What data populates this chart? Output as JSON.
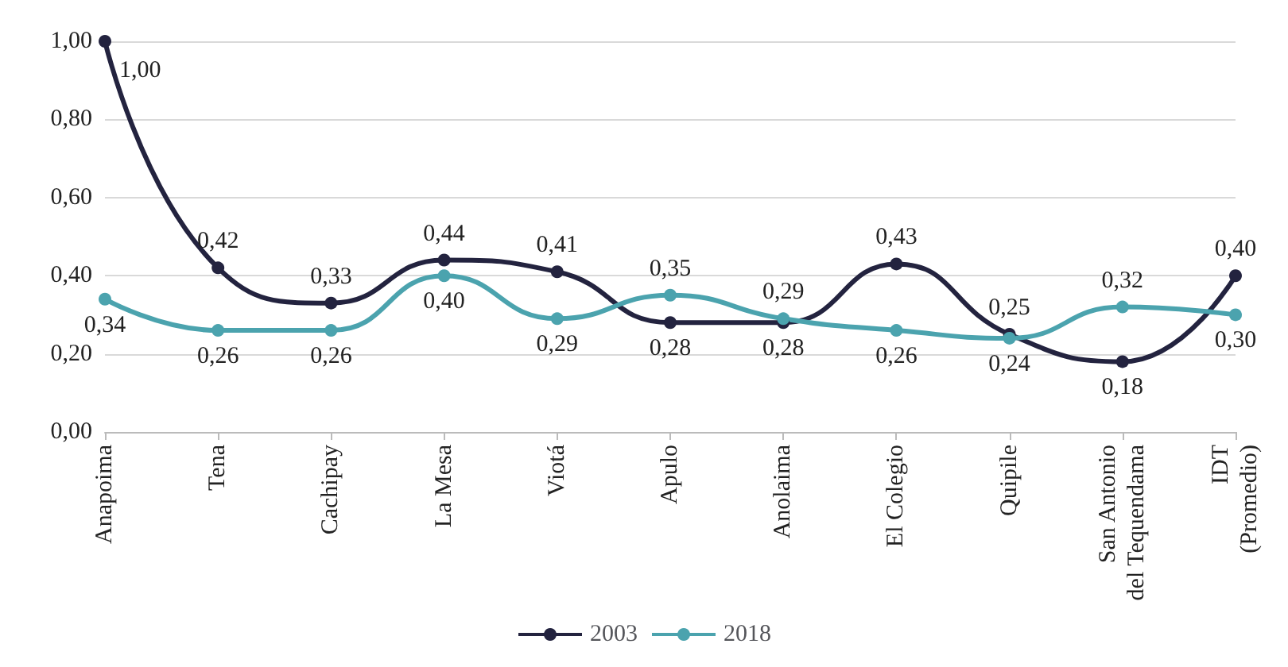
{
  "chart_data": {
    "type": "line",
    "categories": [
      "Anapoima",
      "Tena",
      "Cachipay",
      "La Mesa",
      "Viotá",
      "Apulo",
      "Anolaima",
      "El Colegio",
      "Quipile",
      "San Antonio\ndel Tequendama",
      "IDT\n(Promedio)"
    ],
    "series": [
      {
        "name": "2003",
        "color": "#23233f",
        "values": [
          1.0,
          0.42,
          0.33,
          0.44,
          0.41,
          0.28,
          0.28,
          0.43,
          0.25,
          0.18,
          0.4
        ],
        "value_labels": [
          "1,00",
          "0,42",
          "0,33",
          "0,44",
          "0,41",
          "0,28",
          "0,28",
          "0,43",
          "0,25",
          "0,18",
          "0,40"
        ]
      },
      {
        "name": "2018",
        "color": "#4ba3ae",
        "values": [
          0.34,
          0.26,
          0.26,
          0.4,
          0.29,
          0.35,
          0.29,
          0.26,
          0.24,
          0.32,
          0.3
        ],
        "value_labels": [
          "0,34",
          "0,26",
          "0,26",
          "0,40",
          "0,29",
          "0,35",
          "0,29",
          "0,26",
          "0,24",
          "0,32",
          "0,30"
        ]
      }
    ],
    "ylim": [
      0,
      1
    ],
    "yticks": [
      {
        "value": 0,
        "label": "0,00"
      },
      {
        "value": 0.2,
        "label": "0,20"
      },
      {
        "value": 0.4,
        "label": "0,40"
      },
      {
        "value": 0.6,
        "label": "0,60"
      },
      {
        "value": 0.8,
        "label": "0,80"
      },
      {
        "value": 1,
        "label": "1,00"
      }
    ],
    "grid": "y",
    "legend": "bottom",
    "marker": "circle",
    "line_style": "solid"
  }
}
